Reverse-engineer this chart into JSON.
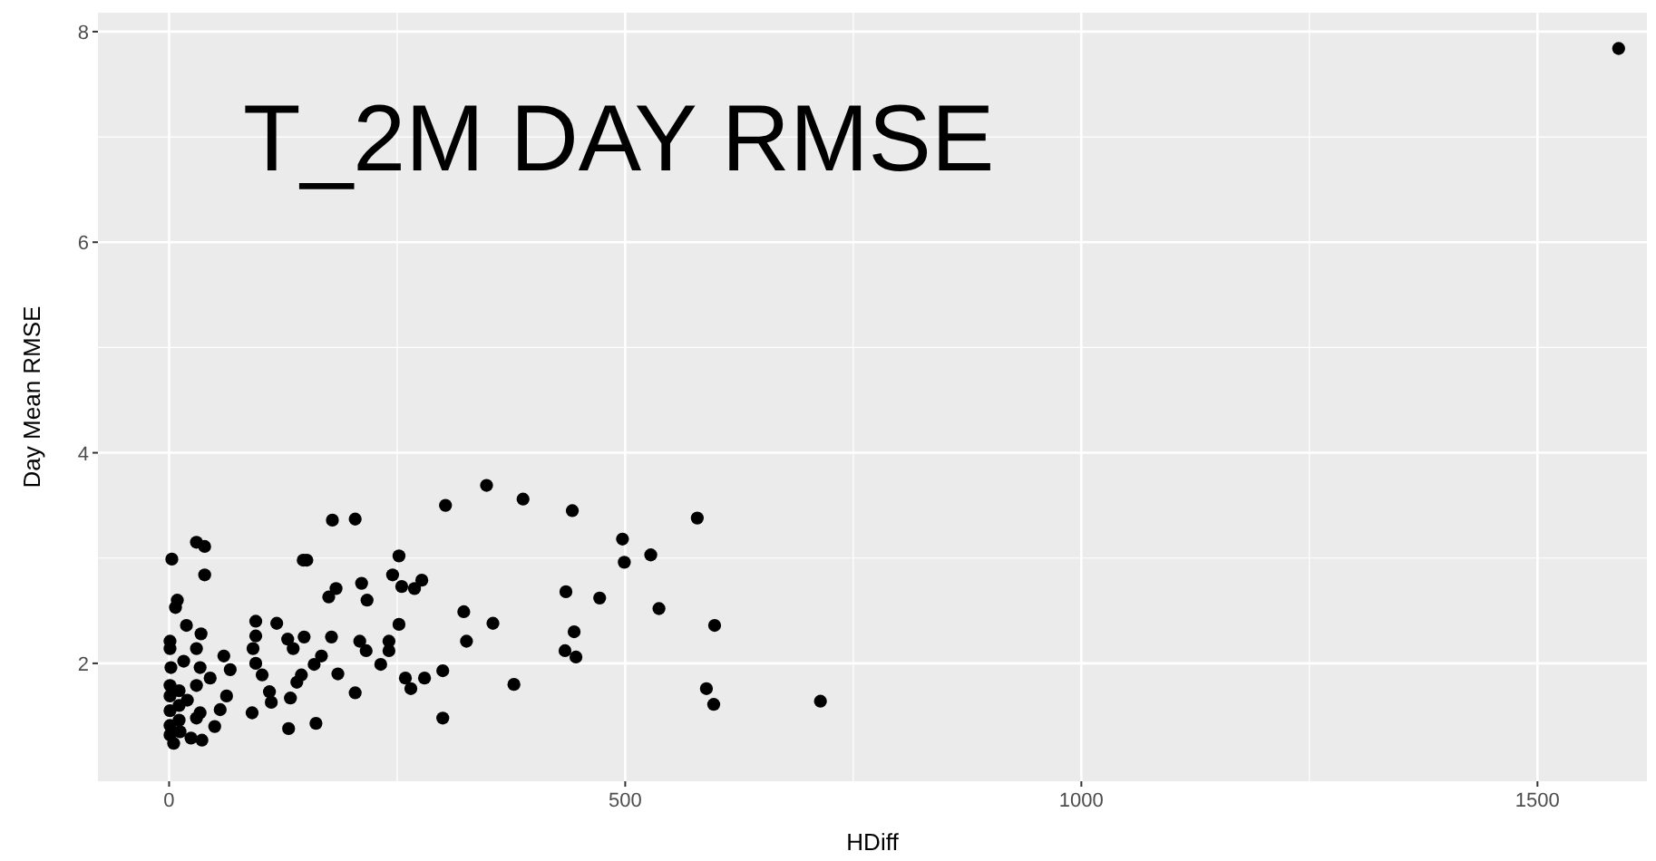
{
  "chart_data": {
    "type": "scatter",
    "title": "T_2M DAY RMSE",
    "xlabel": "HDiff",
    "ylabel": "Day Mean RMSE",
    "xlim": [
      -78,
      1620
    ],
    "ylim": [
      0.88,
      8.18
    ],
    "xticks": [
      0,
      500,
      1000,
      1500
    ],
    "yticks": [
      2,
      4,
      6,
      8
    ],
    "grid": true,
    "marker": "circle",
    "series": [
      {
        "color": "#000000",
        "x": [
          303,
          179,
          204,
          30,
          39,
          3,
          147,
          151,
          252,
          39,
          245,
          255,
          277,
          269,
          211,
          183,
          175,
          217,
          9,
          7,
          323,
          95,
          118,
          19,
          252,
          95,
          35,
          1,
          130,
          148,
          178,
          209,
          241,
          326,
          1,
          30,
          92,
          136,
          216,
          241,
          60,
          167,
          95,
          16,
          2,
          34,
          67,
          159,
          232,
          102,
          145,
          185,
          259,
          280,
          300,
          45,
          30,
          140,
          265,
          204,
          63,
          110,
          112,
          133,
          56,
          34,
          91,
          300,
          50,
          131,
          161,
          1,
          1,
          1,
          1,
          1,
          11,
          11,
          11,
          12,
          24,
          36,
          20,
          30,
          5,
          348,
          388,
          442,
          579,
          497,
          528,
          499,
          435,
          472,
          355,
          537,
          598,
          444,
          434,
          446,
          378,
          589,
          597,
          714,
          1589
        ],
        "values": [
          3.5,
          3.36,
          3.37,
          3.15,
          3.11,
          2.99,
          2.98,
          2.98,
          3.02,
          2.84,
          2.84,
          2.73,
          2.79,
          2.71,
          2.76,
          2.71,
          2.63,
          2.6,
          2.6,
          2.53,
          2.49,
          2.4,
          2.38,
          2.36,
          2.37,
          2.26,
          2.28,
          2.21,
          2.23,
          2.25,
          2.25,
          2.21,
          2.21,
          2.21,
          2.14,
          2.14,
          2.14,
          2.14,
          2.12,
          2.12,
          2.07,
          2.07,
          2.0,
          2.02,
          1.96,
          1.96,
          1.94,
          1.99,
          1.99,
          1.89,
          1.89,
          1.9,
          1.86,
          1.86,
          1.93,
          1.86,
          1.79,
          1.82,
          1.76,
          1.72,
          1.69,
          1.73,
          1.63,
          1.67,
          1.56,
          1.53,
          1.53,
          1.48,
          1.4,
          1.38,
          1.43,
          1.79,
          1.69,
          1.55,
          1.41,
          1.32,
          1.74,
          1.6,
          1.46,
          1.35,
          1.29,
          1.27,
          1.65,
          1.48,
          1.24,
          3.69,
          3.56,
          3.45,
          3.38,
          3.18,
          3.03,
          2.96,
          2.68,
          2.62,
          2.38,
          2.52,
          2.36,
          2.3,
          2.12,
          2.06,
          1.8,
          1.76,
          1.61,
          1.64,
          7.84
        ]
      }
    ]
  }
}
